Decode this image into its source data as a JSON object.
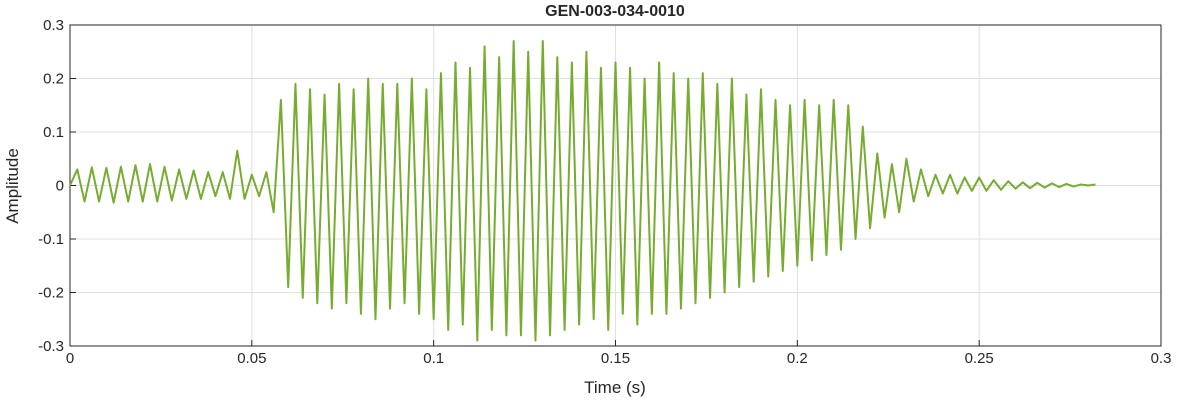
{
  "chart_data": {
    "type": "line",
    "title": "GEN-003-034-0010",
    "x_label": "Time (s)",
    "y_label": "Amplitude",
    "xlim": [
      0,
      0.3
    ],
    "xticks": [
      0,
      0.05,
      0.1,
      0.15,
      0.2,
      0.25,
      0.3
    ],
    "ylim": [
      -0.3,
      0.3
    ],
    "yticks": [
      -0.3,
      -0.2,
      -0.1,
      0,
      0.1,
      0.2,
      0.3
    ],
    "grid": true,
    "x": [
      0,
      0.002,
      0.004,
      0.006,
      0.008,
      0.01,
      0.012,
      0.014,
      0.016,
      0.018,
      0.02,
      0.022,
      0.024,
      0.026,
      0.028,
      0.03,
      0.032,
      0.034,
      0.036,
      0.038,
      0.04,
      0.042,
      0.044,
      0.046,
      0.048,
      0.05,
      0.052,
      0.054,
      0.056,
      0.058,
      0.06,
      0.062,
      0.064,
      0.066,
      0.068,
      0.07,
      0.072,
      0.074,
      0.076,
      0.078,
      0.08,
      0.082,
      0.084,
      0.086,
      0.088,
      0.09,
      0.092,
      0.094,
      0.096,
      0.098,
      0.1,
      0.102,
      0.104,
      0.106,
      0.108,
      0.11,
      0.112,
      0.114,
      0.116,
      0.118,
      0.12,
      0.122,
      0.124,
      0.126,
      0.128,
      0.13,
      0.132,
      0.134,
      0.136,
      0.138,
      0.14,
      0.142,
      0.144,
      0.146,
      0.148,
      0.15,
      0.152,
      0.154,
      0.156,
      0.158,
      0.16,
      0.162,
      0.164,
      0.166,
      0.168,
      0.17,
      0.172,
      0.174,
      0.176,
      0.178,
      0.18,
      0.182,
      0.184,
      0.186,
      0.188,
      0.19,
      0.192,
      0.194,
      0.196,
      0.198,
      0.2,
      0.202,
      0.204,
      0.206,
      0.208,
      0.21,
      0.212,
      0.214,
      0.216,
      0.218,
      0.22,
      0.222,
      0.224,
      0.226,
      0.228,
      0.23,
      0.232,
      0.234,
      0.236,
      0.238,
      0.24,
      0.242,
      0.244,
      0.246,
      0.248,
      0.25,
      0.252,
      0.254,
      0.256,
      0.258,
      0.26,
      0.262,
      0.264,
      0.266,
      0.268,
      0.27,
      0.272,
      0.274,
      0.276,
      0.278,
      0.28,
      0.282
    ],
    "series": [
      {
        "color": "#77ac30",
        "values": [
          0,
          0.03,
          -0.03,
          0.034,
          -0.03,
          0.033,
          -0.032,
          0.035,
          -0.03,
          0.038,
          -0.03,
          0.04,
          -0.03,
          0.035,
          -0.028,
          0.03,
          -0.025,
          0.028,
          -0.025,
          0.025,
          -0.02,
          0.025,
          -0.025,
          0.065,
          -0.025,
          0.02,
          -0.02,
          0.025,
          -0.05,
          0.16,
          -0.19,
          0.19,
          -0.21,
          0.18,
          -0.22,
          0.17,
          -0.23,
          0.19,
          -0.22,
          0.18,
          -0.24,
          0.2,
          -0.25,
          0.19,
          -0.23,
          0.19,
          -0.22,
          0.2,
          -0.24,
          0.18,
          -0.25,
          0.21,
          -0.27,
          0.23,
          -0.26,
          0.22,
          -0.29,
          0.26,
          -0.27,
          0.24,
          -0.28,
          0.27,
          -0.28,
          0.25,
          -0.29,
          0.27,
          -0.28,
          0.24,
          -0.27,
          0.23,
          -0.26,
          0.25,
          -0.25,
          0.22,
          -0.27,
          0.23,
          -0.24,
          0.22,
          -0.26,
          0.2,
          -0.24,
          0.23,
          -0.24,
          0.21,
          -0.23,
          0.2,
          -0.22,
          0.21,
          -0.21,
          0.19,
          -0.2,
          0.2,
          -0.19,
          0.17,
          -0.18,
          0.18,
          -0.17,
          0.16,
          -0.16,
          0.15,
          -0.15,
          0.16,
          -0.14,
          0.15,
          -0.13,
          0.16,
          -0.12,
          0.15,
          -0.1,
          0.11,
          -0.08,
          0.06,
          -0.06,
          0.04,
          -0.05,
          0.05,
          -0.03,
          0.03,
          -0.02,
          0.02,
          -0.015,
          0.02,
          -0.015,
          0.015,
          -0.01,
          0.015,
          -0.01,
          0.01,
          -0.008,
          0.008,
          -0.006,
          0.006,
          -0.005,
          0.005,
          -0.004,
          0.004,
          -0.003,
          0.003,
          -0.002,
          0.002,
          0,
          0.002
        ]
      }
    ]
  }
}
